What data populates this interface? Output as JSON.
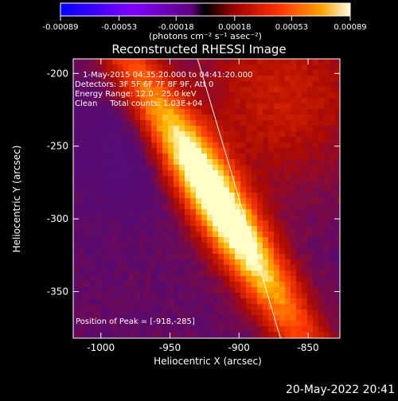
{
  "colorbar": {
    "tick_labels": [
      "-0.00089",
      "-0.00053",
      "-0.00018",
      "0.00018",
      "0.00053",
      "0.00089"
    ],
    "tick_values": [
      -0.00089,
      -0.00053,
      -0.00018,
      0.00018,
      0.00053,
      0.00089
    ],
    "range": [
      -0.00089,
      0.00089
    ],
    "unit_text": "(photons cm⁻² s⁻¹ asec⁻²)"
  },
  "chart_data": {
    "type": "heatmap",
    "title": "Reconstructed RHESSI Image",
    "xlabel": "Heliocentric X (arcsec)",
    "ylabel": "Heliocentric Y (arcsec)",
    "xlim": [
      -1020,
      -827
    ],
    "ylim": [
      -382,
      -190
    ],
    "x_ticks": [
      -1000,
      -950,
      -900,
      -850
    ],
    "x_tick_labels": [
      "-1000",
      "-950",
      "-900",
      "-850"
    ],
    "y_ticks": [
      -200,
      -250,
      -300,
      -350
    ],
    "y_tick_labels": [
      "-200",
      "-250",
      "-300",
      "-350"
    ],
    "peak": [
      -918,
      -285
    ],
    "peak_intensity": 0.00089,
    "limb_line": [
      [
        -930,
        -190
      ],
      [
        -870,
        -382
      ]
    ],
    "info_lines": [
      "1-May-2015 04:35:20.000 to 04:41:20.000",
      "Detectors: 3F 5F 6F 7F 8F 9F, Att 0",
      "Energy Range: 12.0 - 25.0 keV",
      "Clean     Total counts: 1.03E+04"
    ],
    "peak_label": "Position of Peak = [-918,-285]"
  },
  "timestamp": "20-May-2022 20:41"
}
